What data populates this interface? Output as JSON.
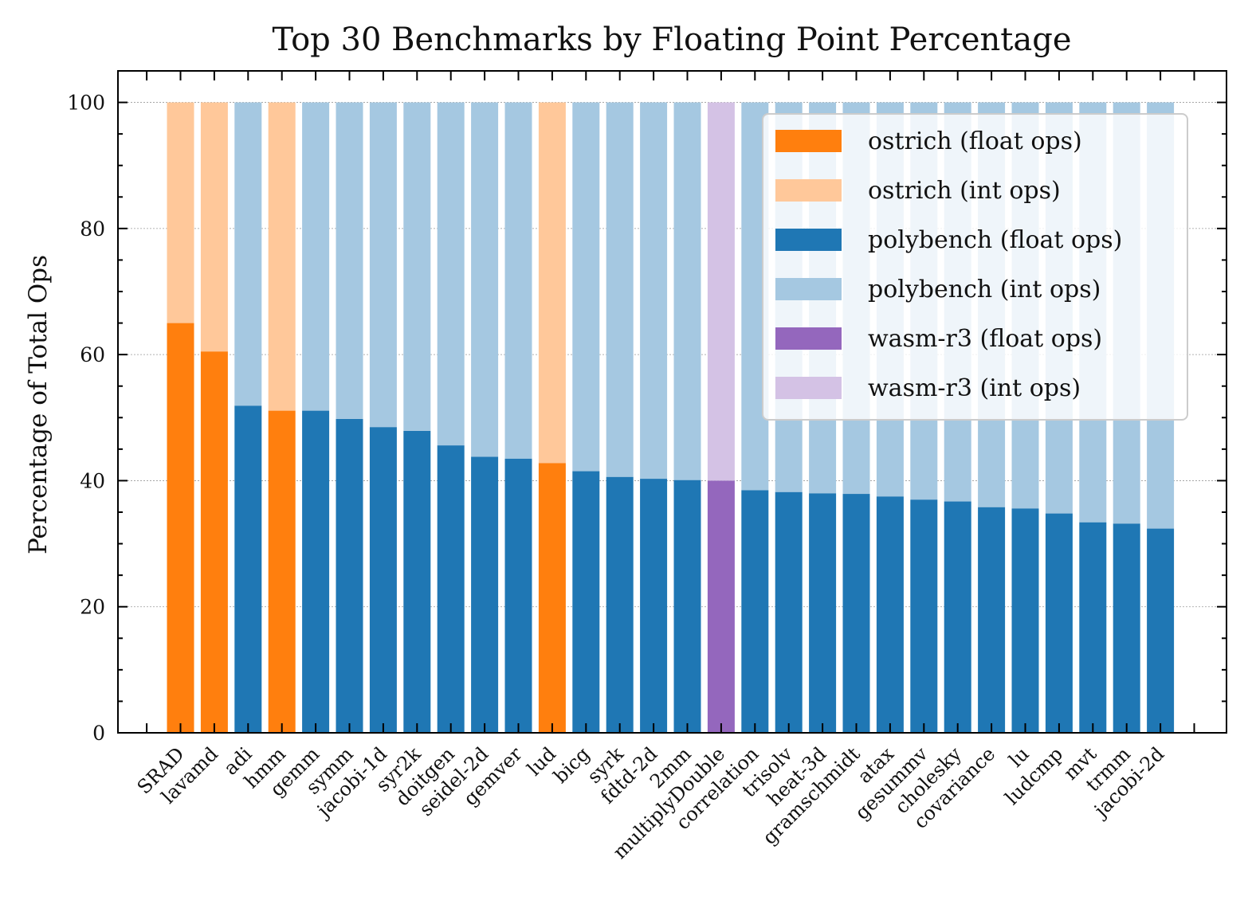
{
  "chart_data": {
    "type": "bar",
    "stacked": true,
    "title": "Top 30 Benchmarks by Floating Point Percentage",
    "xlabel": "",
    "ylabel": "Percentage of Total Ops",
    "ylim": [
      0,
      105
    ],
    "yticks": [
      0,
      20,
      40,
      60,
      80,
      100
    ],
    "grid": true,
    "legend_position": "top-right",
    "colors": {
      "ostrich_float": "#ff7f0e",
      "ostrich_int": "#ffc89a",
      "polybench_float": "#1f77b4",
      "polybench_int": "#a5c8e1",
      "wasm-r3_float": "#9467bd",
      "wasm-r3_int": "#d4c2e5"
    },
    "legend": [
      {
        "label": "ostrich (float ops)",
        "color": "#ff7f0e"
      },
      {
        "label": "ostrich (int ops)",
        "color": "#ffc89a"
      },
      {
        "label": "polybench (float ops)",
        "color": "#1f77b4"
      },
      {
        "label": "polybench (int ops)",
        "color": "#a5c8e1"
      },
      {
        "label": "wasm-r3 (float ops)",
        "color": "#9467bd"
      },
      {
        "label": "wasm-r3 (int ops)",
        "color": "#d4c2e5"
      }
    ],
    "categories": [
      "SRAD",
      "lavamd",
      "adi",
      "hmm",
      "gemm",
      "symm",
      "jacobi-1d",
      "syr2k",
      "doitgen",
      "seidel-2d",
      "gemver",
      "lud",
      "bicg",
      "syrk",
      "fdtd-2d",
      "2mm",
      "multiplyDouble",
      "correlation",
      "trisolv",
      "heat-3d",
      "gramschmidt",
      "atax",
      "gesummv",
      "cholesky",
      "covariance",
      "lu",
      "ludcmp",
      "mvt",
      "trmm",
      "jacobi-2d"
    ],
    "suite": [
      "ostrich",
      "ostrich",
      "polybench",
      "ostrich",
      "polybench",
      "polybench",
      "polybench",
      "polybench",
      "polybench",
      "polybench",
      "polybench",
      "ostrich",
      "polybench",
      "polybench",
      "polybench",
      "polybench",
      "wasm-r3",
      "polybench",
      "polybench",
      "polybench",
      "polybench",
      "polybench",
      "polybench",
      "polybench",
      "polybench",
      "polybench",
      "polybench",
      "polybench",
      "polybench",
      "polybench"
    ],
    "series": [
      {
        "name": "float ops",
        "values": [
          65.0,
          60.5,
          51.9,
          51.1,
          51.1,
          49.8,
          48.5,
          47.9,
          45.6,
          43.8,
          43.5,
          42.8,
          41.5,
          40.6,
          40.3,
          40.1,
          40.0,
          38.5,
          38.2,
          38.0,
          37.9,
          37.5,
          37.0,
          36.7,
          35.8,
          35.6,
          34.8,
          33.4,
          33.2,
          32.4
        ]
      },
      {
        "name": "int ops",
        "values": [
          35.0,
          39.5,
          48.1,
          48.9,
          48.9,
          50.2,
          51.5,
          52.1,
          54.4,
          56.2,
          56.5,
          57.2,
          58.5,
          59.4,
          59.7,
          59.9,
          60.0,
          61.5,
          61.8,
          62.0,
          62.1,
          62.5,
          63.0,
          63.3,
          64.2,
          64.4,
          65.2,
          66.6,
          66.8,
          67.6
        ]
      }
    ]
  }
}
